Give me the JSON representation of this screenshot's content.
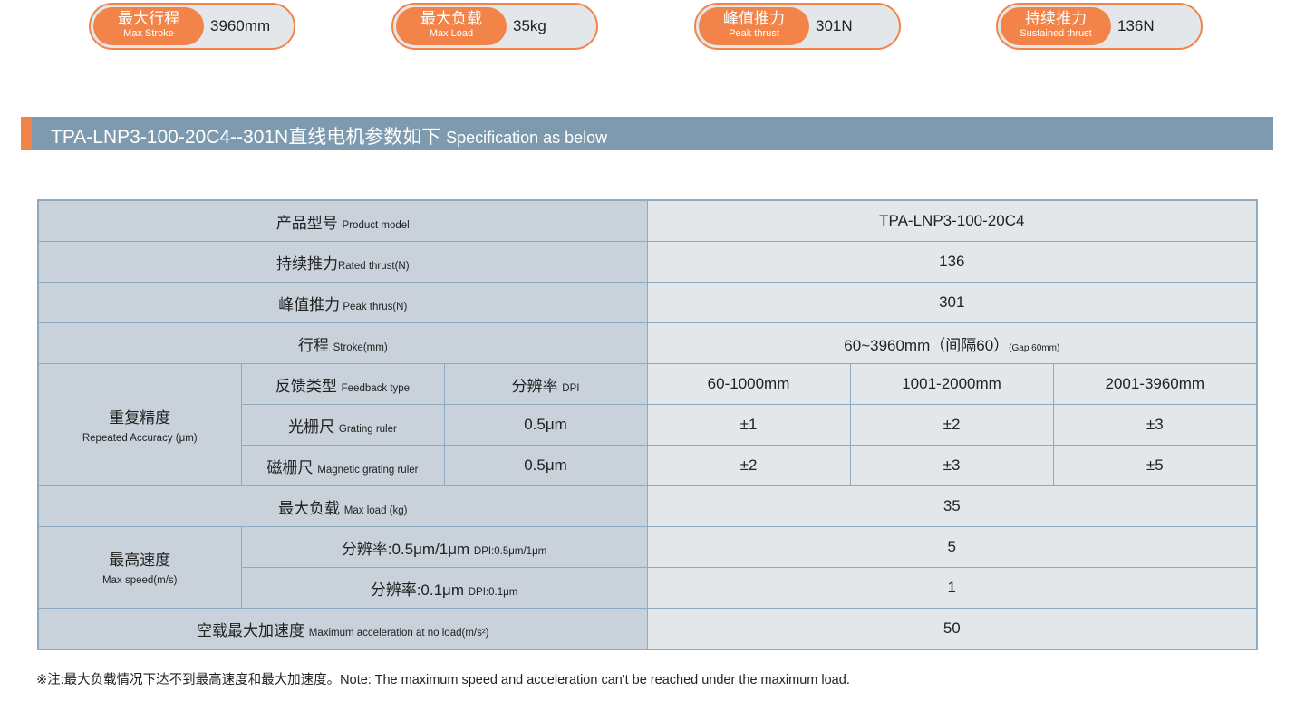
{
  "badges": [
    {
      "cn": "最大行程",
      "en": "Max Stroke",
      "value": "3960mm"
    },
    {
      "cn": "最大负载",
      "en": "Max Load",
      "value": "35kg"
    },
    {
      "cn": "峰值推力",
      "en": "Peak thrust",
      "value": "301N"
    },
    {
      "cn": "持续推力",
      "en": "Sustained thrust",
      "value": "136N"
    }
  ],
  "section": {
    "title": "TPA-LNP3-100-20C4--301N直线电机参数如下",
    "subtitle": "Specification as below"
  },
  "table": {
    "model": {
      "cn": "产品型号 ",
      "en": "Product model",
      "value": "TPA-LNP3-100-20C4"
    },
    "rated": {
      "cn": "持续推力",
      "en": "Rated thrust(N)",
      "value": "136"
    },
    "peak": {
      "cn": "峰值推力",
      "en": " Peak  thrus(N)",
      "value": "301"
    },
    "stroke": {
      "cn": "行程 ",
      "en": "Stroke(mm)",
      "value": "60~3960mm（间隔60）",
      "gap": "(Gap 60mm)"
    },
    "accuracy": {
      "cn": "重复精度",
      "en": "Repeated Accuracy (μm)",
      "feedback_cn": "反馈类型 ",
      "feedback_en": "Feedback type",
      "dpi_cn": "分辨率 ",
      "dpi_en": "DPI",
      "ranges": [
        "60-1000mm",
        "1001-2000mm",
        "2001-3960mm"
      ],
      "rows": [
        {
          "cn": "光栅尺 ",
          "en": "Grating ruler",
          "dpi": "0.5μm",
          "values": [
            "±1",
            "±2",
            "±3"
          ]
        },
        {
          "cn": "磁栅尺 ",
          "en": "Magnetic grating ruler",
          "dpi": "0.5μm",
          "values": [
            "±2",
            "±3",
            "±5"
          ]
        }
      ]
    },
    "load": {
      "cn": "最大负载 ",
      "en": "Max load (kg)",
      "value": "35"
    },
    "speed": {
      "cn": "最高速度",
      "en": "Max speed(m/s)",
      "rows": [
        {
          "cn": "分辨率:0.5μm/1μm ",
          "en": "DPI:0.5μm/1μm",
          "value": "5"
        },
        {
          "cn": "分辨率:0.1μm ",
          "en": "DPI:0.1μm",
          "value": "1"
        }
      ]
    },
    "accel": {
      "cn": "空载最大加速度 ",
      "en": "Maximum acceleration at no load(m/s²)",
      "value": "50"
    }
  },
  "note": "※注:最大负载情况下达不到最高速度和最大加速度。Note: The maximum speed and acceleration can't be reached under the maximum load."
}
